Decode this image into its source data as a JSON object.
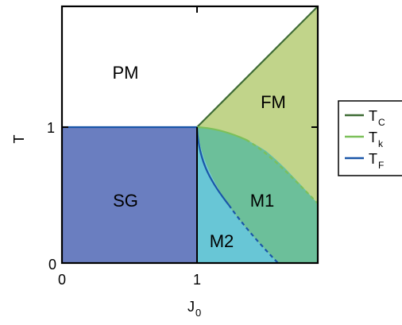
{
  "colors": {
    "pm_fill": "#ffffff",
    "sg_fill": "#6a7ec0",
    "fm_fill": "#c1d48a",
    "m1_fill": "#6cbf9a",
    "m2_fill": "#68c6d6",
    "tc_line": "#3e6b35",
    "tk_line": "#7cc05a",
    "tf_line": "#1a56a8",
    "axis": "#000000"
  },
  "axes": {
    "xlabel_main": "J",
    "xlabel_sub": "0",
    "ylabel": "T",
    "x_ticks": [
      "0",
      "0",
      "1"
    ],
    "y_ticks": [
      "0",
      "1"
    ]
  },
  "regions": {
    "pm": "PM",
    "fm": "FM",
    "sg": "SG",
    "m1": "M1",
    "m2": "M2"
  },
  "legend": {
    "items": [
      {
        "main": "T",
        "sub": "C",
        "color_key": "tc_line"
      },
      {
        "main": "T",
        "sub": "k",
        "color_key": "tk_line"
      },
      {
        "main": "T",
        "sub": "F",
        "color_key": "tf_line"
      }
    ]
  }
}
